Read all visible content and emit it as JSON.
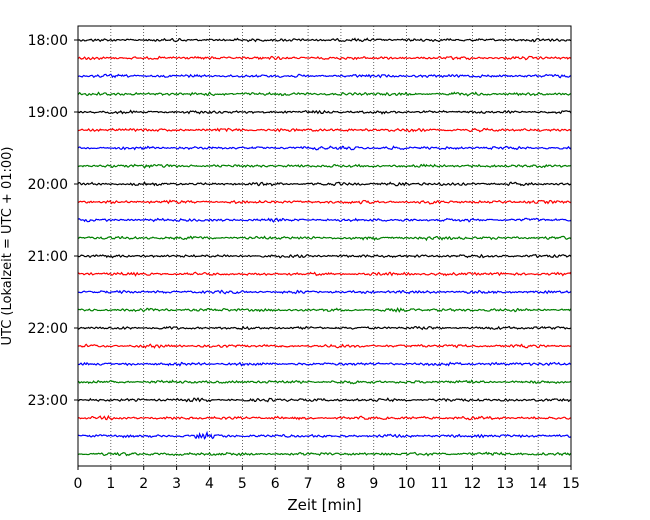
{
  "chart_data": {
    "type": "line",
    "title": "",
    "xlabel": "Zeit  [min]",
    "ylabel": "UTC (Lokalzeit = UTC + 01:00)",
    "xlim": [
      0,
      15
    ],
    "x_ticks": [
      "0",
      "1",
      "2",
      "3",
      "4",
      "5",
      "6",
      "7",
      "8",
      "9",
      "10",
      "11",
      "12",
      "13",
      "14",
      "15"
    ],
    "y_ticks": [
      "18:00",
      "19:00",
      "20:00",
      "21:00",
      "22:00",
      "23:00"
    ],
    "grid": "vertical dotted",
    "trace_colors": [
      "#000000",
      "#ff0000",
      "#0000ff",
      "#008000"
    ],
    "trace_starts": [
      "18:00",
      "18:15",
      "18:30",
      "18:45",
      "19:00",
      "19:15",
      "19:30",
      "19:45",
      "20:00",
      "20:15",
      "20:30",
      "20:45",
      "21:00",
      "21:15",
      "21:30",
      "21:45",
      "22:00",
      "22:15",
      "22:30",
      "22:45",
      "23:00",
      "23:15",
      "23:30",
      "23:45"
    ],
    "events": [
      {
        "trace": "19:30",
        "minute": 8.3,
        "strength": 1.6
      },
      {
        "trace": "20:45",
        "minute": 10.5,
        "strength": 1.4
      },
      {
        "trace": "23:30",
        "minute": 3.8,
        "strength": 2.2
      },
      {
        "trace": "18:45",
        "minute": 5.2,
        "strength": 1.2
      },
      {
        "trace": "19:45",
        "minute": 2.0,
        "strength": 1.2
      },
      {
        "trace": "20:00",
        "minute": 9.7,
        "strength": 1.1
      }
    ]
  }
}
